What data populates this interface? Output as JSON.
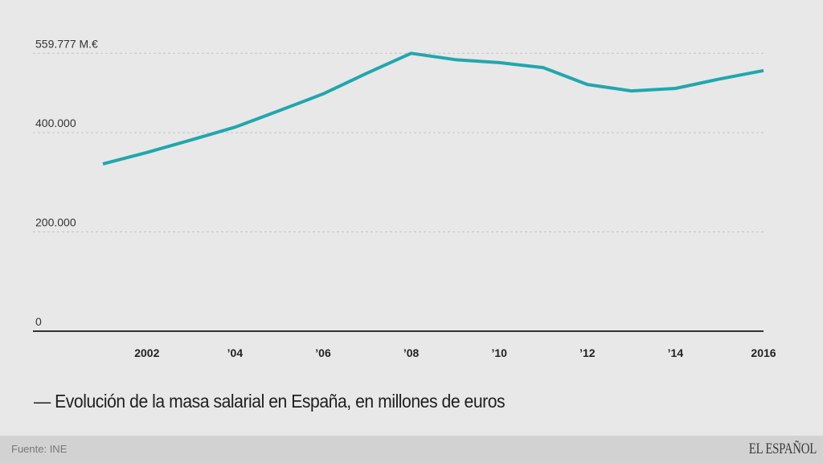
{
  "chart_data": {
    "type": "line",
    "title": "Evolución de la masa salarial en España, en millones de euros",
    "title_prefix": "—",
    "xlabel": "",
    "ylabel": "",
    "x": [
      2001,
      2002,
      2003,
      2004,
      2005,
      2006,
      2007,
      2008,
      2009,
      2010,
      2011,
      2012,
      2013,
      2014,
      2015,
      2016
    ],
    "series": [
      {
        "name": "Masa salarial",
        "color": "#22a6ae",
        "values": [
          337000,
          360000,
          385000,
          411000,
          444000,
          478000,
          520000,
          559777,
          547000,
          541000,
          531000,
          497000,
          484000,
          489000,
          508000,
          525000
        ]
      }
    ],
    "ylim": [
      0,
      559777
    ],
    "xlim": [
      2001,
      2016
    ],
    "yticks": [
      {
        "value": 0,
        "label": "0"
      },
      {
        "value": 200000,
        "label": "200.000"
      },
      {
        "value": 400000,
        "label": "400.000"
      },
      {
        "value": 559777,
        "label": "559.777 M.€"
      }
    ],
    "xticks": [
      {
        "value": 2002,
        "label": "2002"
      },
      {
        "value": 2004,
        "label": "’04"
      },
      {
        "value": 2006,
        "label": "’06"
      },
      {
        "value": 2008,
        "label": "’08"
      },
      {
        "value": 2010,
        "label": "’10"
      },
      {
        "value": 2012,
        "label": "’12"
      },
      {
        "value": 2014,
        "label": "’14"
      },
      {
        "value": 2016,
        "label": "2016"
      }
    ],
    "grid": true,
    "legend": "none"
  },
  "footer": {
    "source": "Fuente: INE",
    "logo": "EL ESPAÑOL"
  },
  "colors": {
    "background": "#e8e8e8",
    "footer_background": "#d2d2d2",
    "line": "#22a6ae",
    "gridline": "#c4c4c4",
    "axis": "#333333"
  }
}
